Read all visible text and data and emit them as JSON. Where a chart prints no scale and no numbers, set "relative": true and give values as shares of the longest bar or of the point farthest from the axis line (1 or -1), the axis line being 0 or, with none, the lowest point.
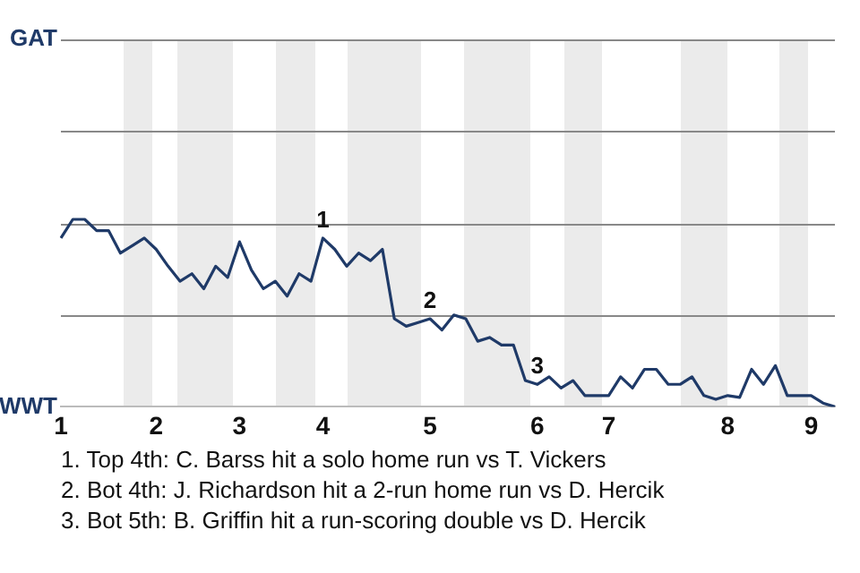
{
  "chart_data": {
    "type": "line",
    "relative": true,
    "categories": [
      "1",
      null,
      null,
      null,
      null,
      null,
      null,
      null,
      "2",
      null,
      null,
      null,
      null,
      null,
      null,
      "3",
      null,
      null,
      null,
      null,
      null,
      null,
      "4",
      null,
      null,
      null,
      null,
      null,
      null,
      null,
      null,
      "5",
      null,
      null,
      null,
      null,
      null,
      null,
      null,
      null,
      "6",
      null,
      null,
      null,
      null,
      null,
      "7",
      null,
      null,
      null,
      null,
      null,
      null,
      null,
      null,
      null,
      "8",
      null,
      null,
      null,
      null,
      null,
      null,
      "9",
      null,
      null
    ],
    "series": [
      {
        "color": "#1f3a68",
        "values": [
          0.9,
          1,
          1,
          0.94,
          0.94,
          0.82,
          0.86,
          0.9,
          0.84,
          0.75,
          0.67,
          0.71,
          0.63,
          0.75,
          0.69,
          0.88,
          0.73,
          0.63,
          0.67,
          0.59,
          0.71,
          0.67,
          0.9,
          0.84,
          0.75,
          0.82,
          0.78,
          0.84,
          0.47,
          0.43,
          0.45,
          0.47,
          0.41,
          0.49,
          0.47,
          0.35,
          0.37,
          0.33,
          0.33,
          0.14,
          0.12,
          0.16,
          0.1,
          0.14,
          0.06,
          0.06,
          0.06,
          0.16,
          0.1,
          0.2,
          0.2,
          0.12,
          0.12,
          0.16,
          0.06,
          0.04,
          0.06,
          0.05,
          0.2,
          0.12,
          0.22,
          0.06,
          0.06,
          0.06,
          0.02,
          0
        ]
      }
    ],
    "marker": "none",
    "ref_lines": [
      {
        "axis": "y",
        "value": 0.49,
        "color": "#888888"
      },
      {
        "axis": "y",
        "value": 0.98,
        "color": "#888888"
      }
    ],
    "annotations": [
      "GAT",
      "WWT",
      {
        "text": "1",
        "x": "4",
        "y": 0.9
      },
      {
        "text": "2",
        "x": "5",
        "y": 0.47
      },
      {
        "text": "3",
        "x": "6",
        "y": 0.12
      },
      "1. Top 4th: C. Barss hit a solo home run vs T. Vickers",
      "2. Bot 4th: J. Richardson hit a 2-run home run vs D. Hercik",
      "3. Bot 5th: B. Griffin hit a run-scoring double vs D. Hercik"
    ]
  }
}
